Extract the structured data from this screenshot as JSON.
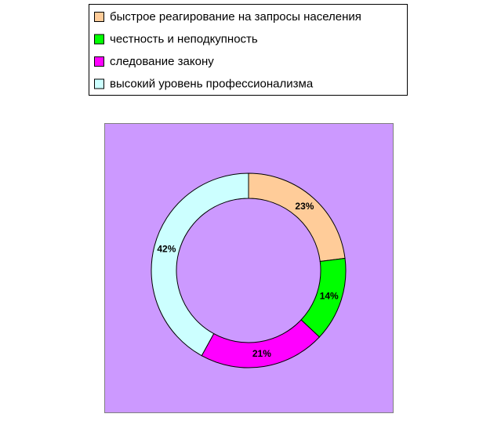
{
  "chart_data": {
    "type": "doughnut",
    "categories": [
      "быстрое реагирование на запросы населения",
      "честность и неподкупность",
      "следование закону",
      "высокий уровень профессионализма"
    ],
    "values": [
      23,
      14,
      21,
      42
    ],
    "value_labels": [
      "23%",
      "14%",
      "21%",
      "42%"
    ],
    "colors": [
      "#ffcc99",
      "#00ff00",
      "#ff00ff",
      "#ccffff"
    ],
    "background": "#cc99ff",
    "legend": "top"
  }
}
